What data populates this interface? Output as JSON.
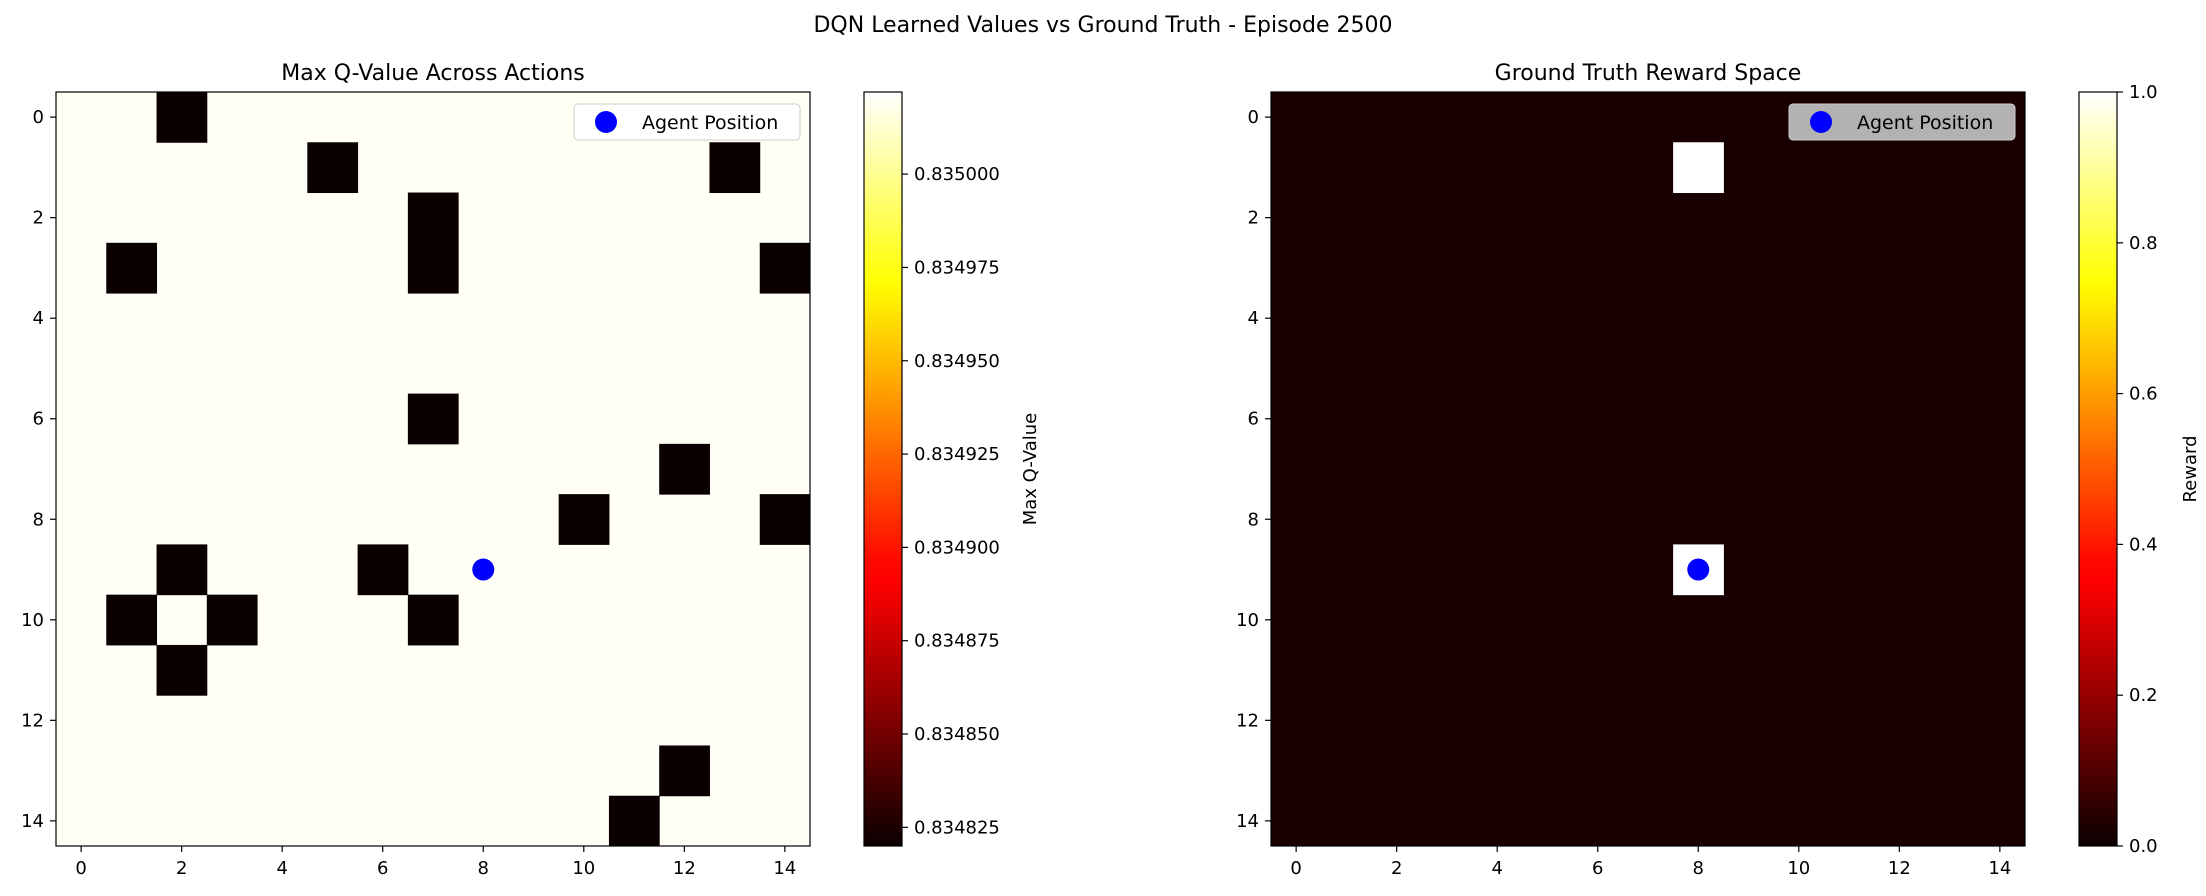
{
  "figure": {
    "suptitle": "DQN Learned Values vs Ground Truth - Episode 2500"
  },
  "colors": {
    "agent": "#0000ff",
    "colormap": "hot"
  },
  "chart_data": [
    {
      "type": "heatmap",
      "title": "Max Q-Value Across Actions",
      "grid_size": 15,
      "xlim": [
        -0.5,
        14.5
      ],
      "ylim": [
        14.5,
        -0.5
      ],
      "xticks": [
        0,
        2,
        4,
        6,
        8,
        10,
        12,
        14
      ],
      "yticks": [
        0,
        2,
        4,
        6,
        8,
        10,
        12,
        14
      ],
      "background_value": 0.83502,
      "low_cells_value": 0.83482,
      "low_cells": [
        [
          2,
          0
        ],
        [
          5,
          1
        ],
        [
          13,
          1
        ],
        [
          7,
          2
        ],
        [
          1,
          3
        ],
        [
          7,
          3
        ],
        [
          14,
          3
        ],
        [
          7,
          6
        ],
        [
          12,
          7
        ],
        [
          10,
          8
        ],
        [
          14,
          8
        ],
        [
          2,
          9
        ],
        [
          6,
          9
        ],
        [
          1,
          10
        ],
        [
          3,
          10
        ],
        [
          7,
          10
        ],
        [
          2,
          11
        ],
        [
          12,
          13
        ],
        [
          11,
          14
        ]
      ],
      "colorbar": {
        "label": "Max Q-Value",
        "vmin": 0.83482,
        "vmax": 0.835022,
        "ticks": [
          "0.834825",
          "0.834850",
          "0.834875",
          "0.834900",
          "0.834925",
          "0.834950",
          "0.834975",
          "0.835000"
        ]
      },
      "legend": {
        "label": "Agent Position",
        "position": "upper right"
      },
      "agent": {
        "x": 8,
        "y": 9
      },
      "legend_box_color": "#ffffff"
    },
    {
      "type": "heatmap",
      "title": "Ground Truth Reward Space",
      "grid_size": 15,
      "xlim": [
        -0.5,
        14.5
      ],
      "ylim": [
        14.5,
        -0.5
      ],
      "xticks": [
        0,
        2,
        4,
        6,
        8,
        10,
        12,
        14
      ],
      "yticks": [
        0,
        2,
        4,
        6,
        8,
        10,
        12,
        14
      ],
      "background_value": 0.02,
      "high_cells_value": 1.0,
      "high_cells": [
        [
          8,
          1
        ],
        [
          8,
          9
        ]
      ],
      "colorbar": {
        "label": "Reward",
        "vmin": 0.0,
        "vmax": 1.0,
        "ticks": [
          "0.0",
          "0.2",
          "0.4",
          "0.6",
          "0.8",
          "1.0"
        ]
      },
      "legend": {
        "label": "Agent Position",
        "position": "upper right"
      },
      "agent": {
        "x": 8,
        "y": 9
      },
      "legend_box_color": "#d0d0d0"
    }
  ]
}
